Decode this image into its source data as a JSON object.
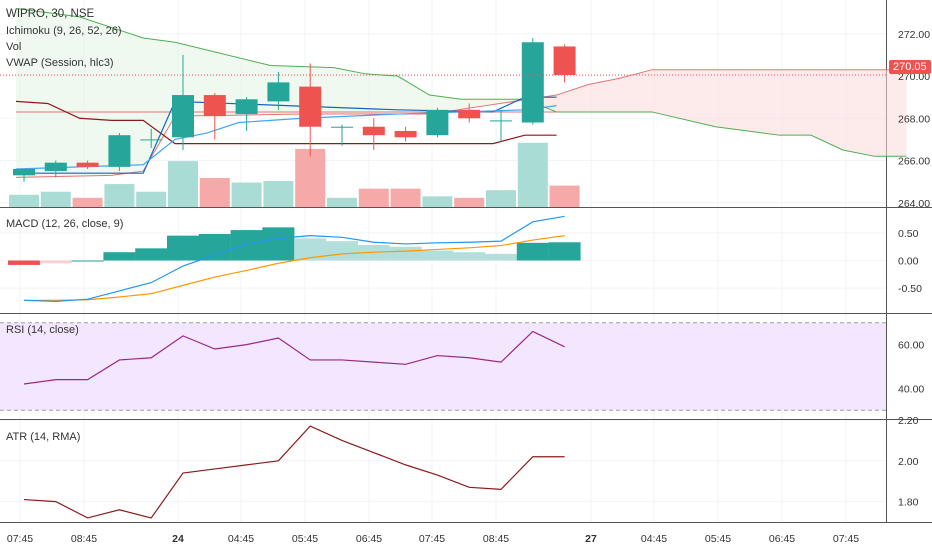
{
  "chart_data": {
    "type": "candlestick",
    "symbol_label": "WIPRO, 30, NSE",
    "colors": {
      "up": "#26a69a",
      "down": "#ef5350",
      "up_vol": "#a8dcd5",
      "down_vol": "#f5a9a9",
      "rsi_bg": "#f3e6ff",
      "macd_line": "#2196f3",
      "signal_line": "#ff9800",
      "rsi_line": "#9c2783",
      "atr_line": "#8b1a1a"
    },
    "x_tick_labels": [
      "07:45",
      "08:45",
      "24",
      "04:45",
      "05:45",
      "06:45",
      "07:45",
      "08:45",
      "27",
      "04:45",
      "05:45",
      "06:45",
      "07:45"
    ],
    "price_panel": {
      "indicator_labels": [
        "Ichimoku (9, 26, 52, 26)",
        "Vol",
        "VWAP (Session, hlc3)"
      ],
      "ylim": [
        263.8,
        273.6
      ],
      "y_ticks": [
        "272.00",
        "270.00",
        "268.00",
        "266.00",
        "264.00"
      ],
      "y_tick_values": [
        272,
        270,
        268,
        266,
        264
      ],
      "last_price": "270.05",
      "last_price_value": 270.05,
      "candles": [
        {
          "o": 265.3,
          "h": 265.6,
          "l": 265.0,
          "c": 265.6
        },
        {
          "o": 265.5,
          "h": 266.0,
          "l": 265.2,
          "c": 265.9
        },
        {
          "o": 265.9,
          "h": 266.0,
          "l": 265.6,
          "c": 265.7
        },
        {
          "o": 265.7,
          "h": 267.3,
          "l": 265.5,
          "c": 267.2
        },
        {
          "o": 267.0,
          "h": 267.5,
          "l": 266.6,
          "c": 267.0
        },
        {
          "o": 267.1,
          "h": 271.0,
          "l": 266.5,
          "c": 269.1
        },
        {
          "o": 269.1,
          "h": 269.2,
          "l": 267.0,
          "c": 268.1
        },
        {
          "o": 268.2,
          "h": 269.0,
          "l": 267.4,
          "c": 268.9
        },
        {
          "o": 268.8,
          "h": 270.2,
          "l": 268.4,
          "c": 269.7
        },
        {
          "o": 269.5,
          "h": 270.6,
          "l": 266.2,
          "c": 267.6
        },
        {
          "o": 267.6,
          "h": 267.7,
          "l": 266.7,
          "c": 267.6
        },
        {
          "o": 267.6,
          "h": 268.0,
          "l": 266.5,
          "c": 267.2
        },
        {
          "o": 267.4,
          "h": 267.6,
          "l": 266.9,
          "c": 267.1
        },
        {
          "o": 267.2,
          "h": 268.5,
          "l": 267.1,
          "c": 268.4
        },
        {
          "o": 268.4,
          "h": 268.7,
          "l": 267.8,
          "c": 268.0
        },
        {
          "o": 267.9,
          "h": 268.4,
          "l": 266.9,
          "c": 267.9
        },
        {
          "o": 267.8,
          "h": 271.8,
          "l": 267.7,
          "c": 271.6
        },
        {
          "o": 271.4,
          "h": 271.5,
          "l": 269.7,
          "c": 270.05
        }
      ],
      "volume": [
        0.8,
        1.0,
        0.6,
        1.5,
        1.0,
        3.0,
        1.9,
        1.6,
        1.7,
        3.8,
        0.6,
        1.2,
        1.2,
        0.7,
        0.6,
        1.1,
        4.2,
        1.4
      ],
      "volume_max": 7.0,
      "ichimoku_span_a": [
        {
          "x": 0,
          "y": 265.2
        },
        {
          "x": 3,
          "y": 265.3
        },
        {
          "x": 4,
          "y": 265.5
        },
        {
          "x": 5,
          "y": 268.1
        },
        {
          "x": 9,
          "y": 268.2
        },
        {
          "x": 13,
          "y": 268.2
        },
        {
          "x": 17,
          "y": 269.1
        },
        {
          "x": 18,
          "y": 269.6
        },
        {
          "x": 19,
          "y": 269.9
        },
        {
          "x": 20,
          "y": 270.3
        },
        {
          "x": 28,
          "y": 270.3
        }
      ],
      "ichimoku_span_b": [
        {
          "x": 0,
          "y": 273.2
        },
        {
          "x": 2,
          "y": 272.8
        },
        {
          "x": 4,
          "y": 271.8
        },
        {
          "x": 5,
          "y": 271.6
        },
        {
          "x": 8,
          "y": 270.5
        },
        {
          "x": 10,
          "y": 270.4
        },
        {
          "x": 11,
          "y": 270.1
        },
        {
          "x": 12,
          "y": 270.0
        },
        {
          "x": 13,
          "y": 269.1
        },
        {
          "x": 14,
          "y": 268.9
        },
        {
          "x": 16,
          "y": 268.9
        },
        {
          "x": 17,
          "y": 268.3
        },
        {
          "x": 18,
          "y": 268.3
        },
        {
          "x": 20,
          "y": 268.3
        },
        {
          "x": 22,
          "y": 267.6
        },
        {
          "x": 24,
          "y": 267.2
        },
        {
          "x": 25,
          "y": 267.2
        },
        {
          "x": 26,
          "y": 266.5
        },
        {
          "x": 27,
          "y": 266.2
        },
        {
          "x": 28,
          "y": 266.2
        }
      ],
      "ichimoku_base": [
        {
          "x": 0,
          "y": 268.8
        },
        {
          "x": 1,
          "y": 268.7
        },
        {
          "x": 2,
          "y": 268.0
        },
        {
          "x": 3,
          "y": 267.9
        },
        {
          "x": 4,
          "y": 267.9
        },
        {
          "x": 5,
          "y": 266.8
        },
        {
          "x": 15,
          "y": 266.8
        },
        {
          "x": 16,
          "y": 267.2
        },
        {
          "x": 17,
          "y": 267.2
        }
      ],
      "ichimoku_conversion": [
        {
          "x": 0,
          "y": 265.4
        },
        {
          "x": 4,
          "y": 265.4
        },
        {
          "x": 5,
          "y": 268.8
        },
        {
          "x": 12,
          "y": 268.4
        },
        {
          "x": 15,
          "y": 268.3
        },
        {
          "x": 16,
          "y": 269.0
        },
        {
          "x": 17,
          "y": 269.0
        }
      ],
      "ichimoku_lagging": [
        {
          "x": 0,
          "y": 268.3
        },
        {
          "x": 17,
          "y": 268.3
        }
      ],
      "vwap": [
        {
          "x": 0,
          "y": 265.6
        },
        {
          "x": 4,
          "y": 265.8
        },
        {
          "x": 5,
          "y": 267.0
        },
        {
          "x": 6,
          "y": 267.3
        },
        {
          "x": 7,
          "y": 267.8
        },
        {
          "x": 9,
          "y": 268.0
        },
        {
          "x": 12,
          "y": 268.2
        },
        {
          "x": 16,
          "y": 268.4
        },
        {
          "x": 17,
          "y": 268.6
        }
      ]
    },
    "macd_panel": {
      "label": "MACD (12, 26, close, 9)",
      "ylim": [
        -0.95,
        0.95
      ],
      "y_ticks": [
        "0.50",
        "0.00",
        "-0.50"
      ],
      "y_tick_values": [
        0.5,
        0.0,
        -0.5
      ],
      "histogram": [
        -0.08,
        -0.05,
        0.0,
        0.15,
        0.22,
        0.45,
        0.48,
        0.55,
        0.6,
        0.4,
        0.35,
        0.28,
        0.25,
        0.18,
        0.15,
        0.12,
        0.32,
        0.33
      ],
      "macd": [
        -0.72,
        -0.74,
        -0.7,
        -0.55,
        -0.4,
        -0.1,
        0.1,
        0.3,
        0.4,
        0.45,
        0.42,
        0.33,
        0.3,
        0.32,
        0.33,
        0.35,
        0.7,
        0.8
      ],
      "signal": [
        -0.72,
        -0.72,
        -0.71,
        -0.66,
        -0.6,
        -0.45,
        -0.3,
        -0.18,
        -0.05,
        0.05,
        0.12,
        0.15,
        0.17,
        0.2,
        0.23,
        0.27,
        0.37,
        0.45
      ]
    },
    "rsi_panel": {
      "label": "RSI (14, close)",
      "ylim": [
        26,
        74
      ],
      "y_ticks": [
        "60.00",
        "40.00"
      ],
      "y_tick_values": [
        60,
        40
      ],
      "band_upper": 70,
      "band_lower": 30,
      "values": [
        42,
        44,
        44,
        53,
        54,
        64,
        58,
        60,
        63,
        53,
        53,
        52,
        51,
        55,
        54,
        52,
        66,
        59
      ]
    },
    "atr_panel": {
      "label": "ATR (14, RMA)",
      "ylim": [
        1.7,
        2.2
      ],
      "y_ticks": [
        "2.20",
        "2.00",
        "1.80"
      ],
      "y_tick_values": [
        2.2,
        2.0,
        1.8
      ],
      "values": [
        1.81,
        1.8,
        1.72,
        1.76,
        1.72,
        1.94,
        1.96,
        1.98,
        2.0,
        2.17,
        2.1,
        2.04,
        1.98,
        1.93,
        1.87,
        1.86,
        2.02,
        2.02
      ]
    }
  }
}
